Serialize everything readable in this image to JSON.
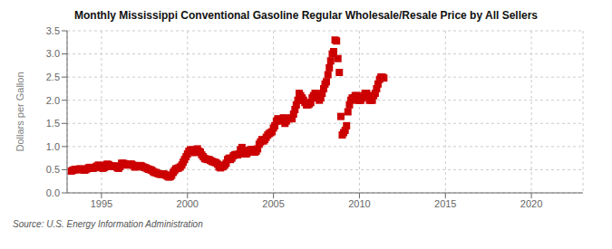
{
  "chart_data": {
    "type": "scatter",
    "title": "Monthly Mississippi Conventional Gasoline Regular Wholesale/Resale Price by All Sellers",
    "ylabel": "Dollars per Gallon",
    "annotations": [
      "Source: U.S. Energy Information Administration"
    ],
    "color": "#CC0000",
    "marker": "square",
    "grid": true,
    "xlim": [
      1993.0,
      2023.0
    ],
    "ylim": [
      0.0,
      3.5
    ],
    "xticks": [
      1995,
      2000,
      2005,
      2010,
      2015,
      2020
    ],
    "yticks": [
      {
        "value": 0.0,
        "label": "0.0"
      },
      0.5,
      {
        "value": 1.0,
        "label": "1.0"
      },
      1.5,
      {
        "value": 2.0,
        "label": "2.0"
      },
      2.5,
      {
        "value": 3.0,
        "label": "3.0"
      },
      3.5
    ],
    "x": [
      1993.25,
      1993.33,
      1993.42,
      1993.5,
      1993.58,
      1993.67,
      1993.75,
      1993.83,
      1993.92,
      1994.0,
      1994.08,
      1994.17,
      1994.25,
      1994.33,
      1994.42,
      1994.5,
      1994.58,
      1994.67,
      1994.75,
      1994.83,
      1994.92,
      1995.0,
      1995.08,
      1995.17,
      1995.25,
      1995.33,
      1995.42,
      1995.5,
      1995.58,
      1995.67,
      1995.75,
      1995.83,
      1995.92,
      1996.0,
      1996.08,
      1996.17,
      1996.25,
      1996.33,
      1996.42,
      1996.5,
      1996.58,
      1996.67,
      1996.75,
      1996.83,
      1996.92,
      1997.0,
      1997.08,
      1997.17,
      1997.25,
      1997.33,
      1997.42,
      1997.5,
      1997.58,
      1997.67,
      1997.75,
      1997.83,
      1997.92,
      1998.0,
      1998.08,
      1998.17,
      1998.25,
      1998.33,
      1998.42,
      1998.5,
      1998.58,
      1998.67,
      1998.75,
      1998.83,
      1998.92,
      1999.0,
      1999.08,
      1999.17,
      1999.25,
      1999.33,
      1999.42,
      1999.5,
      1999.58,
      1999.67,
      1999.75,
      1999.83,
      1999.92,
      2000.0,
      2000.08,
      2000.17,
      2000.25,
      2000.33,
      2000.42,
      2000.5,
      2000.58,
      2000.67,
      2000.75,
      2000.83,
      2000.92,
      2001.0,
      2001.08,
      2001.17,
      2001.25,
      2001.33,
      2001.42,
      2001.5,
      2001.58,
      2001.67,
      2001.75,
      2001.83,
      2001.92,
      2002.0,
      2002.08,
      2002.17,
      2002.25,
      2002.33,
      2002.42,
      2002.5,
      2002.58,
      2002.67,
      2002.75,
      2002.83,
      2002.92,
      2003.0,
      2003.08,
      2003.17,
      2003.25,
      2003.33,
      2003.42,
      2003.5,
      2003.58,
      2003.67,
      2003.75,
      2003.83,
      2003.92,
      2004.0,
      2004.08,
      2004.17,
      2004.25,
      2004.33,
      2004.42,
      2004.5,
      2004.58,
      2004.67,
      2004.75,
      2004.83,
      2004.92,
      2005.0,
      2005.08,
      2005.17,
      2005.25,
      2005.33,
      2005.42,
      2005.5,
      2005.58,
      2005.67,
      2005.75,
      2005.83,
      2005.92,
      2006.0,
      2006.08,
      2006.17,
      2006.25,
      2006.33,
      2006.42,
      2006.5,
      2006.58,
      2006.67,
      2006.75,
      2006.83,
      2006.92,
      2007.0,
      2007.08,
      2007.17,
      2007.25,
      2007.33,
      2007.42,
      2007.5,
      2007.58,
      2007.67,
      2007.75,
      2007.83,
      2007.92,
      2008.0,
      2008.08,
      2008.17,
      2008.25,
      2008.33,
      2008.42,
      2008.5,
      2008.58,
      2008.67,
      2008.75,
      2008.83,
      2008.92,
      2009.0,
      2009.08,
      2009.17,
      2009.25,
      2009.33,
      2009.42,
      2009.5,
      2009.58,
      2009.67,
      2009.75,
      2009.83,
      2009.92,
      2010.0,
      2010.08,
      2010.17,
      2010.25,
      2010.33,
      2010.42,
      2010.5,
      2010.58,
      2010.67,
      2010.75,
      2010.83,
      2010.92,
      2011.0,
      2011.08,
      2011.17,
      2011.25,
      2011.33,
      2011.42
    ],
    "values": [
      0.47,
      0.49,
      0.5,
      0.51,
      0.5,
      0.5,
      0.52,
      0.51,
      0.51,
      0.49,
      0.5,
      0.52,
      0.54,
      0.55,
      0.54,
      0.53,
      0.54,
      0.56,
      0.58,
      0.6,
      0.58,
      0.55,
      0.53,
      0.55,
      0.6,
      0.62,
      0.61,
      0.58,
      0.57,
      0.58,
      0.58,
      0.57,
      0.54,
      0.53,
      0.57,
      0.64,
      0.64,
      0.63,
      0.61,
      0.6,
      0.61,
      0.62,
      0.62,
      0.6,
      0.56,
      0.56,
      0.57,
      0.58,
      0.59,
      0.58,
      0.56,
      0.55,
      0.54,
      0.52,
      0.51,
      0.5,
      0.49,
      0.46,
      0.44,
      0.44,
      0.42,
      0.41,
      0.4,
      0.4,
      0.41,
      0.4,
      0.38,
      0.36,
      0.34,
      0.35,
      0.38,
      0.44,
      0.48,
      0.52,
      0.53,
      0.54,
      0.56,
      0.6,
      0.66,
      0.72,
      0.78,
      0.84,
      0.9,
      0.93,
      0.92,
      0.93,
      0.87,
      0.88,
      0.95,
      0.9,
      0.88,
      0.82,
      0.78,
      0.74,
      0.73,
      0.72,
      0.72,
      0.7,
      0.68,
      0.67,
      0.66,
      0.65,
      0.62,
      0.56,
      0.54,
      0.56,
      0.57,
      0.6,
      0.64,
      0.72,
      0.75,
      0.72,
      0.75,
      0.8,
      0.82,
      0.83,
      0.82,
      0.84,
      0.93,
      0.98,
      0.88,
      0.85,
      0.84,
      0.87,
      0.92,
      0.93,
      0.94,
      0.92,
      0.88,
      0.9,
      0.95,
      1.05,
      1.1,
      1.15,
      1.12,
      1.15,
      1.2,
      1.25,
      1.28,
      1.3,
      1.32,
      1.4,
      1.45,
      1.55,
      1.6,
      1.58,
      1.55,
      1.58,
      1.62,
      1.5,
      1.55,
      1.6,
      1.6,
      1.62,
      1.6,
      1.7,
      1.8,
      1.9,
      2.0,
      2.15,
      2.1,
      2.05,
      2.0,
      1.95,
      1.9,
      1.9,
      1.92,
      1.95,
      2.05,
      2.1,
      2.15,
      2.1,
      2.05,
      2.0,
      2.05,
      2.15,
      2.25,
      2.35,
      2.4,
      2.55,
      2.7,
      2.85,
      3.0,
      3.05,
      3.3,
      3.28,
      2.9,
      2.6,
      1.65,
      1.25,
      1.3,
      1.35,
      1.45,
      1.75,
      1.9,
      2.0,
      2.05,
      2.05,
      2.1,
      2.1,
      2.0,
      2.0,
      2.0,
      2.05,
      2.1,
      2.15,
      2.15,
      2.1,
      2.0,
      2.0,
      2.0,
      2.1,
      2.15,
      2.25,
      2.35,
      2.45,
      2.5,
      2.5,
      2.48
    ]
  }
}
